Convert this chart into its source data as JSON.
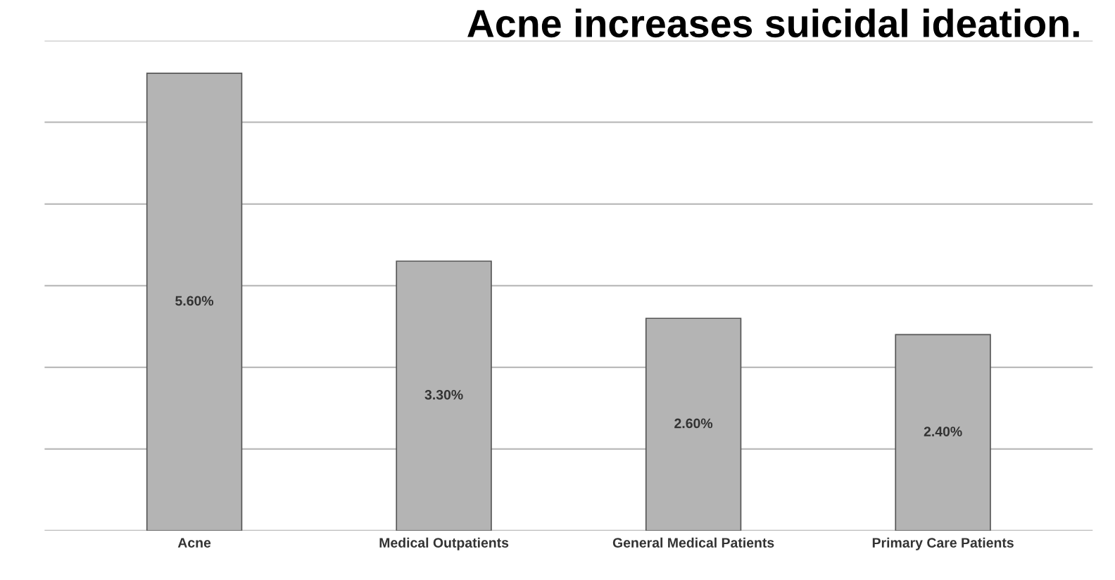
{
  "chart_data": {
    "type": "bar",
    "title": "Acne increases suicidal ideation.",
    "categories": [
      "Acne",
      "Medical Outpatients",
      "General Medical Patients",
      "Primary Care Patients"
    ],
    "values": [
      5.6,
      3.3,
      2.6,
      2.4
    ],
    "color": "#b4b4b4",
    "value_labels": [
      "5.60%",
      "3.30%",
      "2.60%",
      "2.40%"
    ],
    "ylim": [
      0,
      6
    ],
    "yticks": [
      {
        "value": 0,
        "label": null
      },
      {
        "value": 1,
        "label": null
      },
      {
        "value": 2,
        "label": null
      },
      {
        "value": 3,
        "label": null
      },
      {
        "value": 4,
        "label": null
      },
      {
        "value": 5,
        "label": null
      },
      {
        "value": 6,
        "label": null
      }
    ],
    "grid": "y",
    "tick_labels": "x"
  }
}
